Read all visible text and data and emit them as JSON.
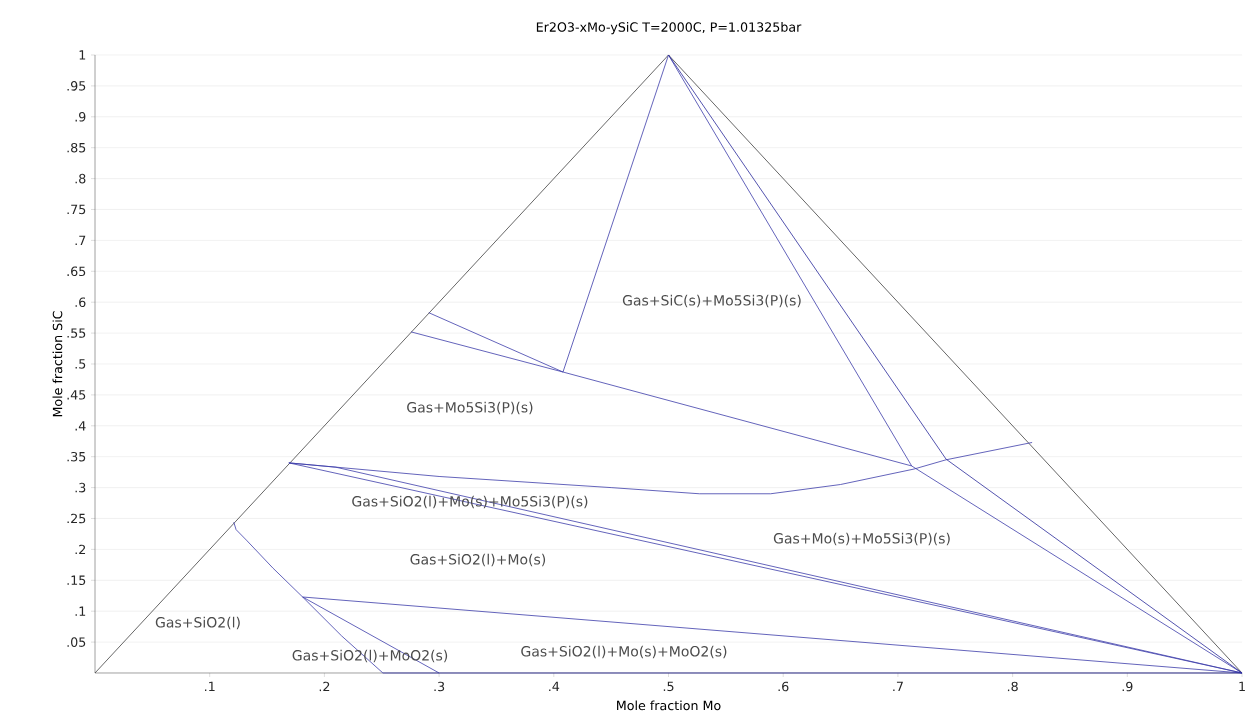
{
  "chart_data": {
    "type": "line",
    "title": "Er2O3-xMo-ySiC T=2000C, P=1.01325bar",
    "xlabel": "Mole fraction Mo",
    "ylabel": "Mole fraction SiC",
    "xlim": [
      0,
      1
    ],
    "ylim": [
      0,
      1
    ],
    "xticks": [
      {
        "value": 0.1,
        "label": ".1"
      },
      {
        "value": 0.2,
        "label": ".2"
      },
      {
        "value": 0.3,
        "label": ".3"
      },
      {
        "value": 0.4,
        "label": ".4"
      },
      {
        "value": 0.5,
        "label": ".5"
      },
      {
        "value": 0.6,
        "label": ".6"
      },
      {
        "value": 0.7,
        "label": ".7"
      },
      {
        "value": 0.8,
        "label": ".8"
      },
      {
        "value": 0.9,
        "label": ".9"
      },
      1
    ],
    "yticks": [
      {
        "value": 0.05,
        "label": ".05"
      },
      {
        "value": 0.1,
        "label": ".1"
      },
      {
        "value": 0.15,
        "label": ".15"
      },
      {
        "value": 0.2,
        "label": ".2"
      },
      {
        "value": 0.25,
        "label": ".25"
      },
      {
        "value": 0.3,
        "label": ".3"
      },
      {
        "value": 0.35,
        "label": ".35"
      },
      {
        "value": 0.4,
        "label": ".4"
      },
      {
        "value": 0.45,
        "label": ".45"
      },
      {
        "value": 0.5,
        "label": ".5"
      },
      {
        "value": 0.55,
        "label": ".55"
      },
      {
        "value": 0.6,
        "label": ".6"
      },
      {
        "value": 0.65,
        "label": ".65"
      },
      {
        "value": 0.7,
        "label": ".7"
      },
      {
        "value": 0.75,
        "label": ".75"
      },
      {
        "value": 0.8,
        "label": ".8"
      },
      {
        "value": 0.85,
        "label": ".85"
      },
      {
        "value": 0.9,
        "label": ".9"
      },
      {
        "value": 0.95,
        "label": ".95"
      },
      1
    ],
    "grid": "y",
    "marker": "none",
    "series": [
      {
        "color": "#404040",
        "x": [
          0,
          0.5,
          1
        ],
        "values": [
          0,
          1,
          0
        ]
      },
      {
        "color": "#3c3caa",
        "x": [
          0.5,
          0.408
        ],
        "values": [
          1,
          0.487
        ]
      },
      {
        "color": "#3c3caa",
        "x": [
          0.291,
          0.408
        ],
        "values": [
          0.583,
          0.487
        ]
      },
      {
        "color": "#3c3caa",
        "x": [
          0.2755,
          0.408,
          0.712
        ],
        "values": [
          0.552,
          0.487,
          0.335
        ]
      },
      {
        "color": "#3c3caa",
        "x": [
          0.5,
          0.712,
          1
        ],
        "values": [
          1,
          0.335,
          0
        ]
      },
      {
        "color": "#28289a",
        "x": [
          0.5,
          0.742,
          1
        ],
        "values": [
          1,
          0.346,
          0
        ]
      },
      {
        "color": "#3c3caa",
        "x": [
          0.169,
          0.3,
          0.45,
          0.527,
          0.589,
          0.65,
          0.714,
          0.742,
          0.817
        ],
        "values": [
          0.34,
          0.318,
          0.3,
          0.29,
          0.29,
          0.305,
          0.33,
          0.345,
          0.373
        ]
      },
      {
        "color": "#3c3caa",
        "x": [
          0.169,
          1
        ],
        "values": [
          0.34,
          0
        ]
      },
      {
        "color": "#3c3caa",
        "x": [
          0.169,
          0.21,
          1
        ],
        "values": [
          0.34,
          0.333,
          0
        ]
      },
      {
        "color": "#3c3caa",
        "x": [
          0.121,
          0.123,
          0.132,
          0.155,
          0.181,
          0.215,
          0.251
        ],
        "values": [
          0.244,
          0.232,
          0.215,
          0.17,
          0.123,
          0.06,
          0
        ]
      },
      {
        "color": "#3c3caa",
        "x": [
          0.181,
          0.3
        ],
        "values": [
          0.123,
          0
        ]
      },
      {
        "color": "#3c3caa",
        "x": [
          0.181,
          1
        ],
        "values": [
          0.123,
          0
        ]
      },
      {
        "color": "#28289a",
        "x": [
          0.251,
          1
        ],
        "values": [
          0,
          0
        ]
      }
    ],
    "annotations": [
      "Gas+SiC(s)+Mo5Si3(P)(s)",
      "Gas+Mo5Si3(P)(s)",
      "Gas+SiO2(l)+Mo(s)+Mo5Si3(P)(s)",
      "Gas+Mo(s)+Mo5Si3(P)(s)",
      "Gas+SiO2(l)+Mo(s)",
      "Gas+SiO2(l)",
      "Gas+SiO2(l)+MoO2(s)",
      "Gas+SiO2(l)+Mo(s)+MoO2(s)"
    ]
  }
}
